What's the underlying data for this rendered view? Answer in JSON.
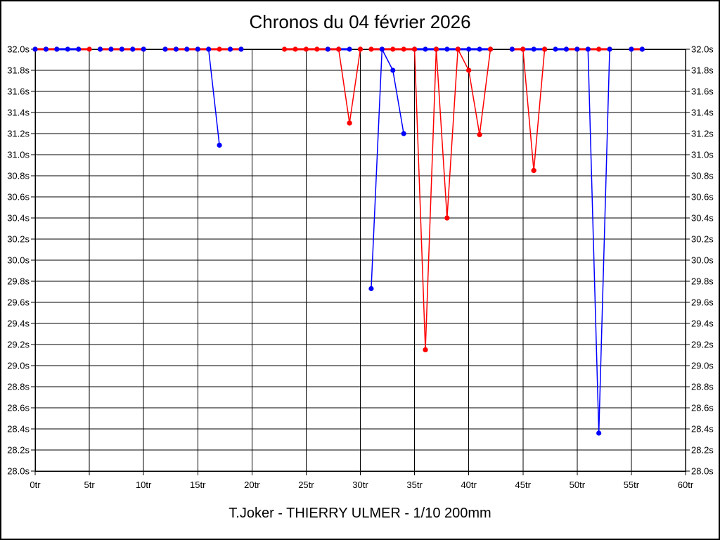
{
  "chart_data": {
    "type": "line",
    "title": "Chronos du 04 février 2026",
    "caption": "T.Joker - THIERRY ULMER - 1/10 200mm",
    "x_unit": "tr",
    "y_unit": "s",
    "x_range": [
      0,
      60
    ],
    "x_tick_step": 5,
    "y_range": [
      28.0,
      32.0
    ],
    "y_tick_step": 0.2,
    "grid": true,
    "y_max_at_top": true,
    "x_tick_labels": [
      "0tr",
      "5tr",
      "10tr",
      "15tr",
      "20tr",
      "25tr",
      "30tr",
      "35tr",
      "40tr",
      "45tr",
      "50tr",
      "55tr",
      "60tr"
    ],
    "y_tick_labels_top_to_bottom": [
      "32.0s",
      "31.8s",
      "31.6s",
      "31.4s",
      "31.2s",
      "31.0s",
      "30.8s",
      "30.6s",
      "30.4s",
      "30.2s",
      "30.0s",
      "29.8s",
      "29.6s",
      "29.4s",
      "29.2s",
      "29.0s",
      "28.8s",
      "28.6s",
      "28.4s",
      "28.2s",
      "28.0s"
    ],
    "series": [
      {
        "name": "series-blue",
        "color": "#0000ff",
        "runs": [
          {
            "laps": [
              0,
              1,
              2,
              3,
              4
            ],
            "times": [
              32.0,
              32.0,
              32.0,
              32.0,
              32.0
            ]
          },
          {
            "laps": [
              6,
              7,
              8,
              9,
              10
            ],
            "times": [
              32.0,
              32.0,
              32.0,
              32.0,
              32.0
            ]
          },
          {
            "laps": [
              12,
              13,
              14,
              15,
              16,
              17
            ],
            "times": [
              32.0,
              32.0,
              32.0,
              32.0,
              32.0,
              31.09
            ]
          },
          {
            "laps": [
              18,
              19
            ],
            "times": [
              32.0,
              32.0
            ]
          },
          {
            "laps": [
              27,
              28,
              29
            ],
            "times": [
              32.0,
              32.0,
              32.0
            ]
          },
          {
            "laps": [
              31,
              32,
              33,
              34
            ],
            "times": [
              29.73,
              32.0,
              31.8,
              31.2
            ]
          },
          {
            "laps": [
              35,
              36,
              37,
              38,
              39,
              40,
              41,
              42
            ],
            "times": [
              32.0,
              32.0,
              32.0,
              32.0,
              32.0,
              32.0,
              32.0,
              32.0
            ]
          },
          {
            "laps": [
              44,
              45,
              46,
              47
            ],
            "times": [
              32.0,
              32.0,
              32.0,
              32.0
            ]
          },
          {
            "laps": [
              48,
              49,
              50,
              51,
              52,
              53
            ],
            "times": [
              32.0,
              32.0,
              32.0,
              32.0,
              28.36,
              32.0
            ]
          },
          {
            "laps": [
              55,
              56
            ],
            "times": [
              32.0,
              32.0
            ]
          }
        ]
      },
      {
        "name": "series-red",
        "color": "#ff0000",
        "runs": [
          {
            "laps": [
              0,
              1,
              2
            ],
            "times": [
              32.0,
              32.0,
              32.0
            ]
          },
          {
            "laps": [
              4,
              5
            ],
            "times": [
              32.0,
              32.0
            ]
          },
          {
            "laps": [
              6,
              7,
              8,
              9,
              10
            ],
            "times": [
              32.0,
              32.0,
              32.0,
              32.0,
              32.0
            ]
          },
          {
            "laps": [
              12,
              13,
              14,
              15,
              16,
              17,
              18,
              19
            ],
            "times": [
              32.0,
              32.0,
              32.0,
              32.0,
              32.0,
              32.0,
              32.0,
              32.0
            ]
          },
          {
            "laps": [
              23,
              24,
              25,
              26,
              27,
              28,
              29,
              30
            ],
            "times": [
              32.0,
              32.0,
              32.0,
              32.0,
              32.0,
              32.0,
              31.3,
              32.0
            ]
          },
          {
            "laps": [
              31,
              32,
              33,
              34,
              35,
              36,
              37,
              38,
              39,
              40,
              41,
              42
            ],
            "times": [
              32.0,
              32.0,
              32.0,
              32.0,
              32.0,
              29.15,
              32.0,
              30.4,
              32.0,
              31.8,
              31.19,
              32.0
            ]
          },
          {
            "laps": [
              44,
              45,
              46,
              47
            ],
            "times": [
              32.0,
              32.0,
              30.85,
              32.0
            ]
          },
          {
            "laps": [
              49,
              50,
              51,
              52,
              53
            ],
            "times": [
              32.0,
              32.0,
              32.0,
              32.0,
              32.0
            ]
          },
          {
            "laps": [
              55,
              56
            ],
            "times": [
              32.0,
              32.0
            ]
          }
        ]
      }
    ]
  }
}
